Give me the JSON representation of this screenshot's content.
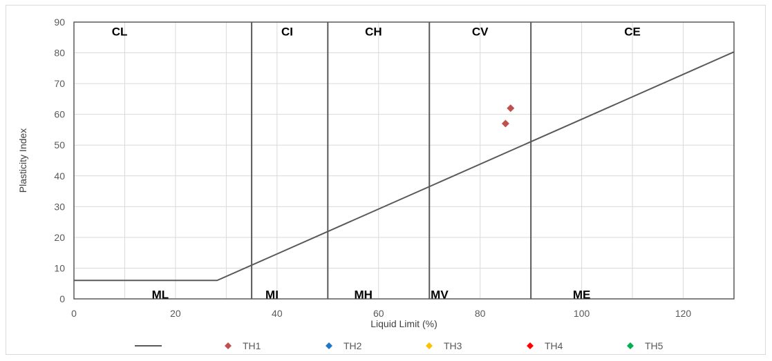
{
  "chart_data": {
    "type": "scatter",
    "title": "",
    "xlabel": "Liquid Limit (%)",
    "ylabel": "Plasticity Index",
    "xlim": [
      0,
      130
    ],
    "ylim": [
      0,
      90
    ],
    "x_ticks": [
      0,
      20,
      40,
      60,
      80,
      100,
      120
    ],
    "y_ticks": [
      0,
      10,
      20,
      30,
      40,
      50,
      60,
      70,
      80,
      90
    ],
    "grid": true,
    "legend_position": "bottom",
    "boundary_lines_x": [
      35,
      50,
      70,
      90
    ],
    "a_line": {
      "points": [
        [
          0,
          6
        ],
        [
          28.2,
          6
        ],
        [
          130,
          80.3
        ]
      ],
      "color": "#595959"
    },
    "zone_labels_upper": [
      {
        "text": "CL",
        "x": 9,
        "y": 87
      },
      {
        "text": "CI",
        "x": 42,
        "y": 87
      },
      {
        "text": "CH",
        "x": 59,
        "y": 87
      },
      {
        "text": "CV",
        "x": 80,
        "y": 87
      },
      {
        "text": "CE",
        "x": 110,
        "y": 87
      }
    ],
    "zone_labels_lower": [
      {
        "text": "ML",
        "x": 17,
        "y": 1.5
      },
      {
        "text": "MI",
        "x": 39,
        "y": 1.5
      },
      {
        "text": "MH",
        "x": 57,
        "y": 1.5
      },
      {
        "text": "MV",
        "x": 72,
        "y": 1.5
      },
      {
        "text": "ME",
        "x": 100,
        "y": 1.5
      }
    ],
    "series": [
      {
        "name": "TH1",
        "color": "#c0504d",
        "points": [
          [
            85,
            57
          ],
          [
            86,
            62
          ]
        ]
      },
      {
        "name": "TH2",
        "color": "#1f77c8",
        "points": []
      },
      {
        "name": "TH3",
        "color": "#ffc000",
        "points": []
      },
      {
        "name": "TH4",
        "color": "#ff0000",
        "points": []
      },
      {
        "name": "TH5",
        "color": "#00b050",
        "points": []
      }
    ]
  }
}
